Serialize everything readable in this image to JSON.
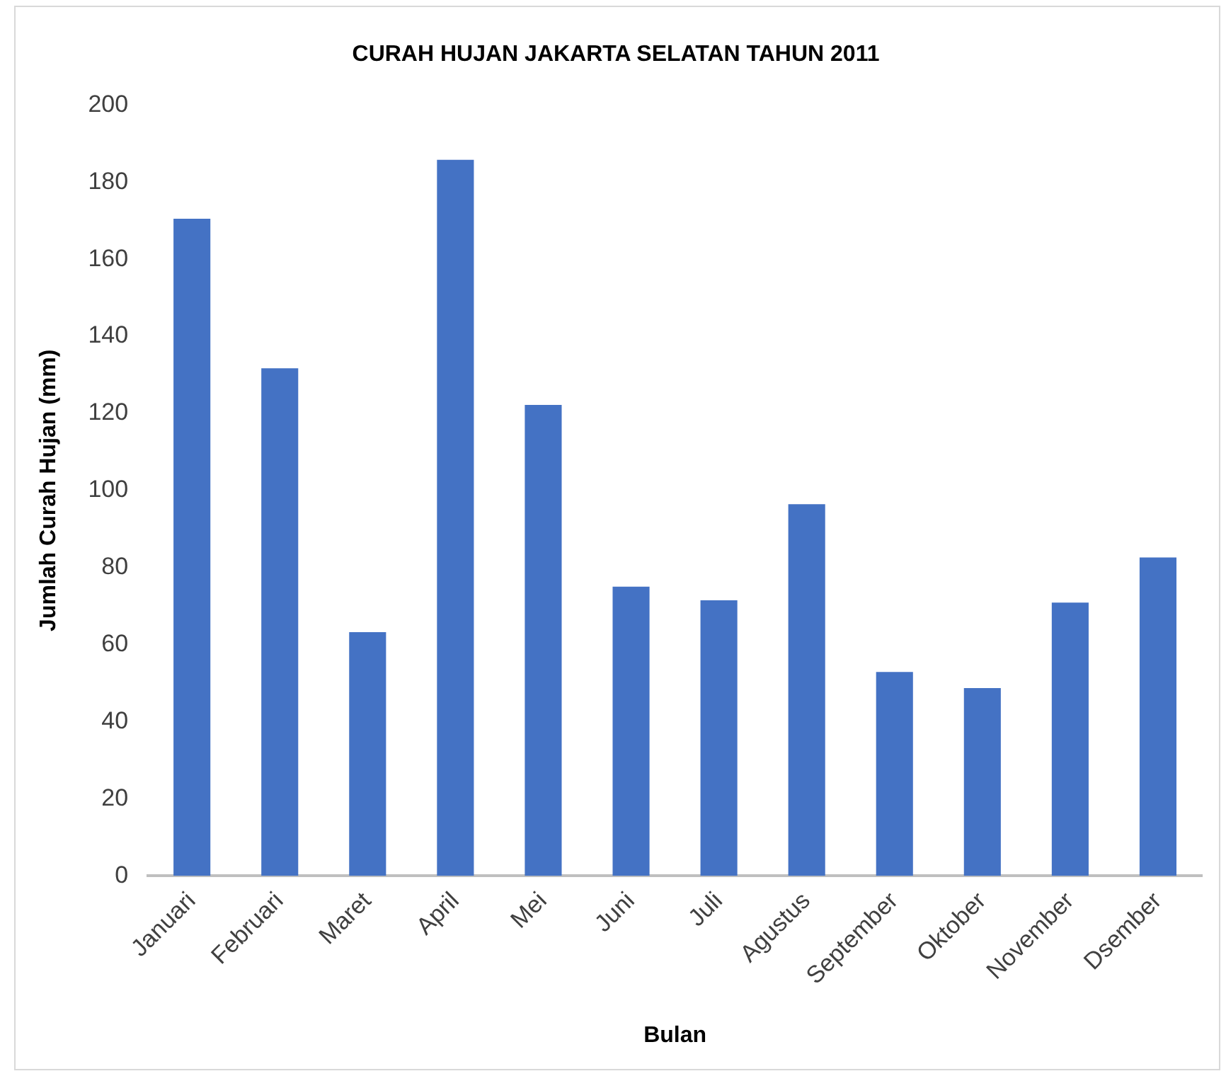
{
  "chart_data": {
    "type": "bar",
    "title": "CURAH HUJAN JAKARTA SELATAN TAHUN 2011",
    "xlabel": "Bulan",
    "ylabel": "Jumlah Curah Hujan (mm)",
    "categories": [
      "Januari",
      "Februari",
      "Maret",
      "April",
      "Mei",
      "Juni",
      "Juli",
      "Agustus",
      "September",
      "Oktober",
      "November",
      "Dsember"
    ],
    "values": [
      170.5,
      131.7,
      63.2,
      185.8,
      122.2,
      75,
      71.5,
      96.4,
      52.9,
      48.7,
      70.9,
      82.6
    ],
    "color": "#4472c4",
    "ylim": [
      0,
      200
    ],
    "yticks": [
      0,
      20,
      40,
      60,
      80,
      100,
      120,
      140,
      160,
      180,
      200
    ],
    "grid": false,
    "legend": false
  }
}
